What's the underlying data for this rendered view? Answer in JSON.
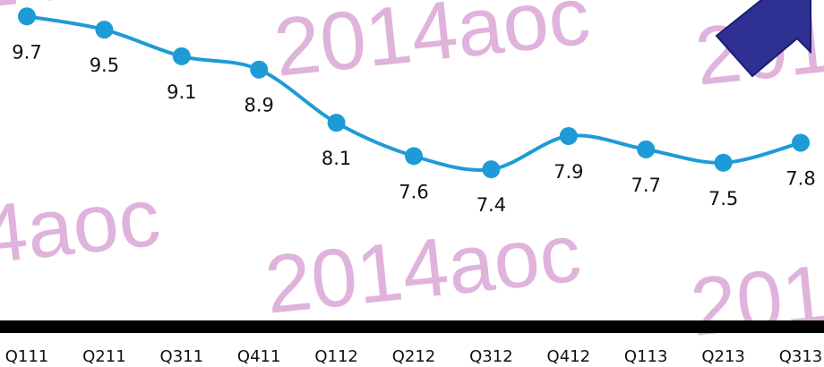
{
  "watermark": "2014aoc",
  "chart_data": {
    "type": "line",
    "categories": [
      "Q111",
      "Q211",
      "Q311",
      "Q411",
      "Q112",
      "Q212",
      "Q312",
      "Q412",
      "Q113",
      "Q213",
      "Q313"
    ],
    "values": [
      9.7,
      9.5,
      9.1,
      8.9,
      8.1,
      7.6,
      7.4,
      7.9,
      7.7,
      7.5,
      7.8
    ],
    "color": "#1e9bd7"
  }
}
